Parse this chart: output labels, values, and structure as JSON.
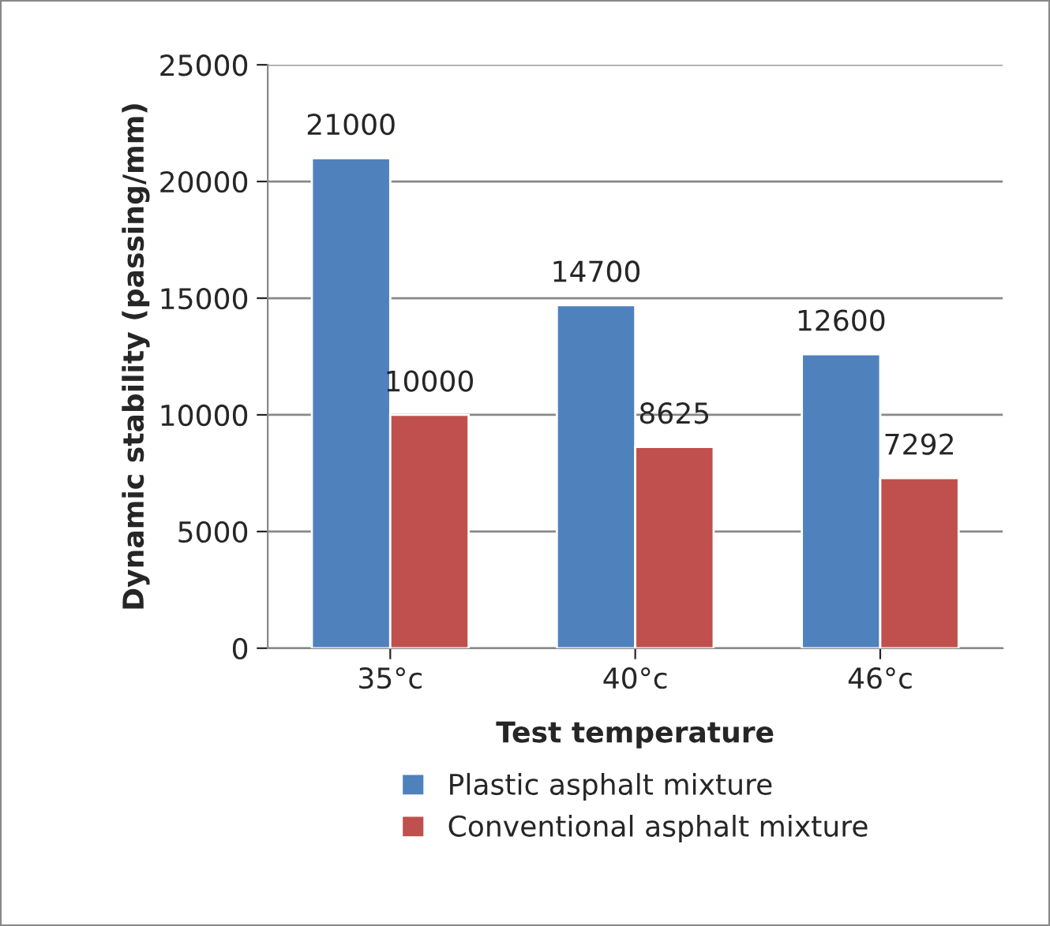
{
  "chart_data": {
    "type": "bar",
    "xlabel": "Test temperature",
    "ylabel": "Dynamic stability (passing/mm)",
    "categories": [
      "35°c",
      "40°c",
      "46°c"
    ],
    "series": [
      {
        "name": "Plastic asphalt mixture",
        "color": "#4f81bd",
        "values": [
          21000,
          14700,
          12600
        ]
      },
      {
        "name": "Conventional asphalt mixture",
        "color": "#c0504d",
        "values": [
          10000,
          8625,
          7292
        ]
      }
    ],
    "ylim": [
      0,
      25000
    ],
    "yticks": [
      0,
      5000,
      10000,
      15000,
      20000,
      25000
    ],
    "grid": "y",
    "legend": "bottom",
    "data_labels": true
  }
}
